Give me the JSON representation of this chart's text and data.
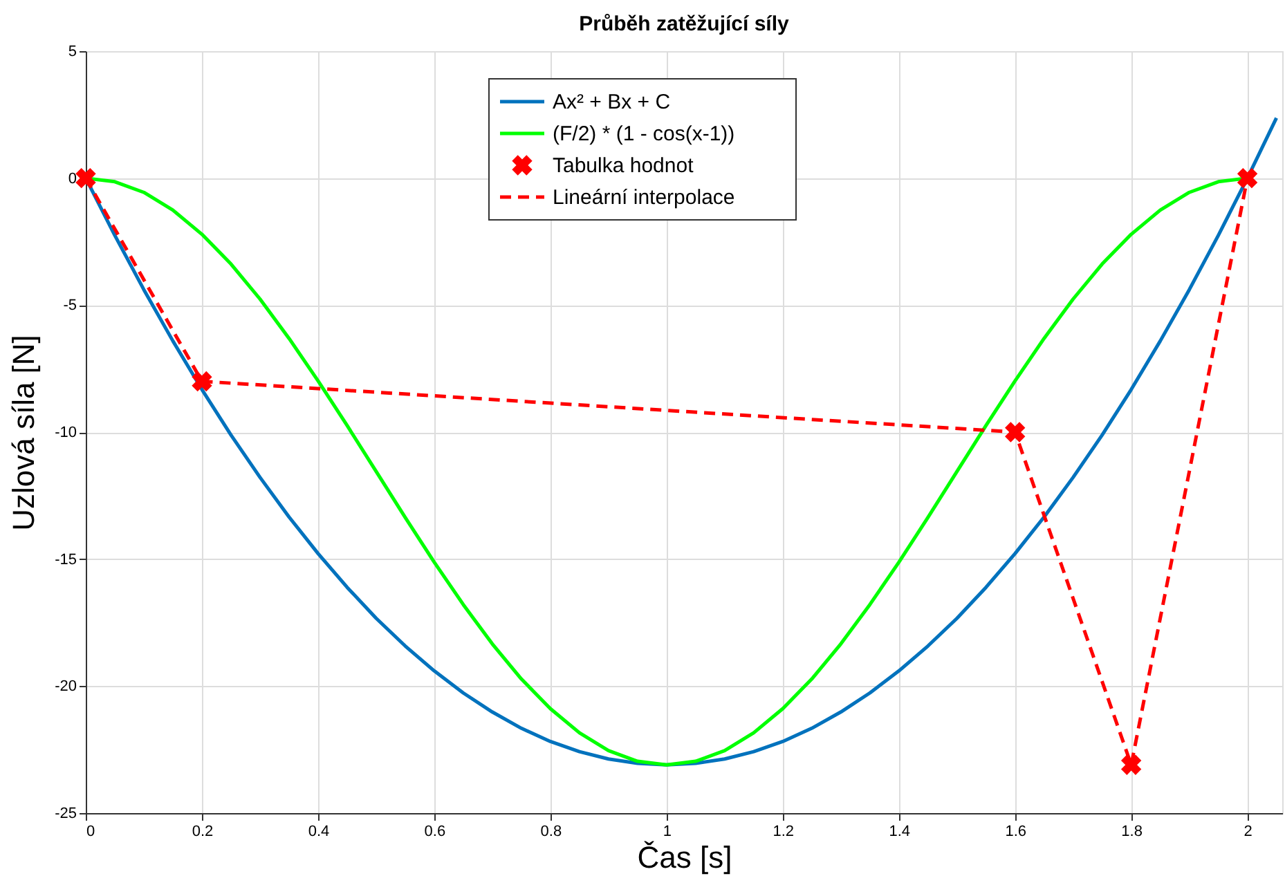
{
  "chart_data": {
    "type": "line",
    "title": "Průběh zatěžující síly",
    "xlabel": "Čas [s]",
    "ylabel": "Uzlová síla [N]",
    "xlim": [
      0,
      2.06
    ],
    "xticks": [
      0,
      0.2,
      0.4,
      0.6,
      0.8,
      1,
      1.2,
      1.4,
      1.6,
      1.8,
      2
    ],
    "ylim": [
      -25,
      5
    ],
    "yticks": [
      -25,
      -20,
      -15,
      -10,
      -5,
      0,
      5
    ],
    "grid": true,
    "legend": "top",
    "series": [
      {
        "name": "Ax² + Bx + C",
        "type": "line",
        "color": "#0072bd",
        "line_style": "solid",
        "x": [
          0,
          0.05,
          0.1,
          0.15,
          0.2,
          0.25,
          0.3,
          0.35,
          0.4,
          0.45,
          0.5,
          0.55,
          0.6,
          0.65,
          0.7,
          0.75,
          0.8,
          0.85,
          0.9,
          0.95,
          1,
          1.05,
          1.1,
          1.15,
          1.2,
          1.25,
          1.3,
          1.35,
          1.4,
          1.45,
          1.5,
          1.55,
          1.6,
          1.65,
          1.7,
          1.75,
          1.8,
          1.85,
          1.9,
          1.95,
          2,
          2.05
        ],
        "values": [
          0,
          -2.25,
          -4.39,
          -6.41,
          -8.32,
          -10.11,
          -11.78,
          -13.34,
          -14.78,
          -16.11,
          -17.33,
          -18.42,
          -19.4,
          -20.27,
          -21.02,
          -21.66,
          -22.18,
          -22.58,
          -22.87,
          -23.04,
          -23.1,
          -23.04,
          -22.87,
          -22.58,
          -22.18,
          -21.66,
          -21.02,
          -20.27,
          -19.4,
          -18.42,
          -17.33,
          -16.11,
          -14.78,
          -13.34,
          -11.78,
          -10.11,
          -8.32,
          -6.41,
          -4.39,
          -2.25,
          0,
          2.37
        ]
      },
      {
        "name": "(F/2) * (1 - cos(x-1))",
        "type": "line",
        "color": "#00ff00",
        "line_style": "solid",
        "x": [
          0,
          0.05,
          0.1,
          0.15,
          0.2,
          0.25,
          0.3,
          0.35,
          0.4,
          0.45,
          0.5,
          0.55,
          0.6,
          0.65,
          0.7,
          0.75,
          0.8,
          0.85,
          0.9,
          0.95,
          1,
          1.05,
          1.1,
          1.15,
          1.2,
          1.25,
          1.3,
          1.35,
          1.4,
          1.45,
          1.5,
          1.55,
          1.6,
          1.65,
          1.7,
          1.75,
          1.8,
          1.85,
          1.9,
          1.95,
          2
        ],
        "values": [
          0,
          -0.14,
          -0.56,
          -1.26,
          -2.21,
          -3.38,
          -4.76,
          -6.31,
          -7.98,
          -9.74,
          -11.55,
          -13.36,
          -15.12,
          -16.79,
          -18.34,
          -19.72,
          -20.89,
          -21.84,
          -22.54,
          -22.96,
          -23.1,
          -22.96,
          -22.54,
          -21.84,
          -20.89,
          -19.72,
          -18.34,
          -16.79,
          -15.12,
          -13.36,
          -11.55,
          -9.74,
          -7.98,
          -6.31,
          -4.76,
          -3.38,
          -2.21,
          -1.26,
          -0.56,
          -0.14,
          0
        ]
      },
      {
        "name": "Tabulka hodnot",
        "type": "scatter",
        "marker": "cross",
        "color": "#ff0000",
        "x": [
          0,
          0.2,
          1.6,
          1.8,
          2
        ],
        "values": [
          0,
          -8,
          -10,
          -23.1,
          0
        ]
      },
      {
        "name": "Lineární interpolace",
        "type": "line",
        "color": "#ff0000",
        "line_style": "dashed",
        "x": [
          0,
          0.2,
          1.6,
          1.8,
          2
        ],
        "values": [
          0,
          -8,
          -10,
          -23.1,
          0
        ]
      }
    ]
  }
}
